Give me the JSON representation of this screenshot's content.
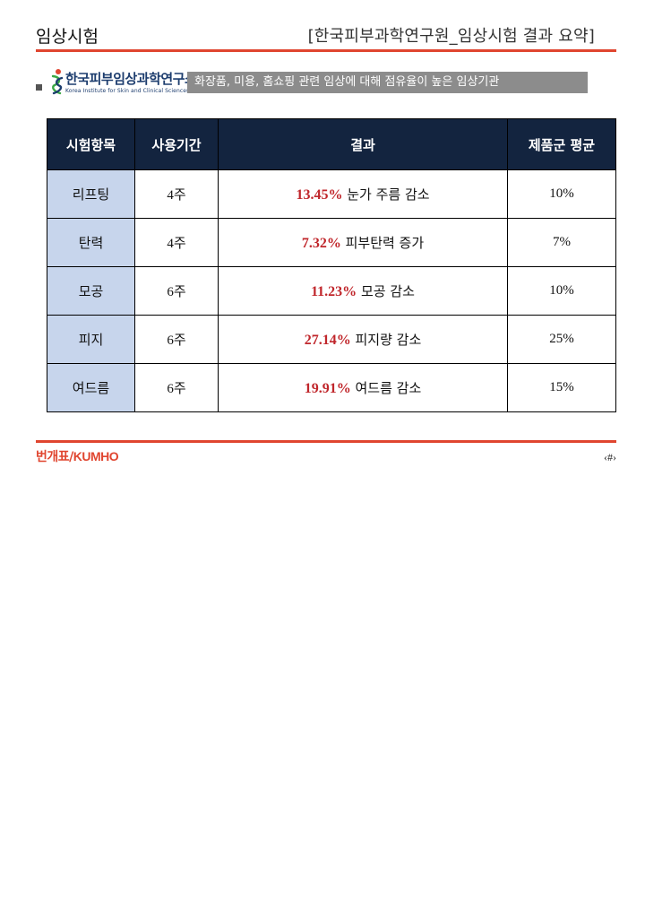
{
  "header": {
    "section_title": "임상시험",
    "doc_title": "[한국피부과학연구원_임상시험 결과 요약]"
  },
  "logo": {
    "name": "한국피부임상과학연구소",
    "subtitle": "Korea Institute for Skin and Clinical Sciences",
    "colors": {
      "primary": "#1d3d6e",
      "accent": "#e0452f",
      "green": "#3aa845"
    }
  },
  "banner": {
    "text": "화장품, 미용, 홈쇼핑 관련 임상에 대해 점유율이 높은 임상기관"
  },
  "table": {
    "headers": [
      "시험항목",
      "사용기간",
      "결과",
      "제품군 평균"
    ],
    "rows": [
      {
        "item": "리프팅",
        "period": "4주",
        "pct": "13.45%",
        "desc": "눈가 주름 감소",
        "avg": "10%"
      },
      {
        "item": "탄력",
        "period": "4주",
        "pct": "7.32%",
        "desc": "피부탄력 증가",
        "avg": "7%"
      },
      {
        "item": "모공",
        "period": "6주",
        "pct": "11.23%",
        "desc": "모공 감소",
        "avg": "10%"
      },
      {
        "item": "피지",
        "period": "6주",
        "pct": "27.14%",
        "desc": "피지량 감소",
        "avg": "25%"
      },
      {
        "item": "여드름",
        "period": "6주",
        "pct": "19.91%",
        "desc": "여드름 감소",
        "avg": "15%"
      }
    ]
  },
  "footer": {
    "brand_kr": "번개표",
    "brand_sep": "/",
    "brand_en": "KUMHO",
    "page_number": "‹#›"
  },
  "colors": {
    "rule": "#e0452f",
    "table_header_bg": "#13243f",
    "item_cell_bg": "#c7d5ec",
    "highlight_red": "#c0262b",
    "banner_bg": "#8c8c8c"
  }
}
